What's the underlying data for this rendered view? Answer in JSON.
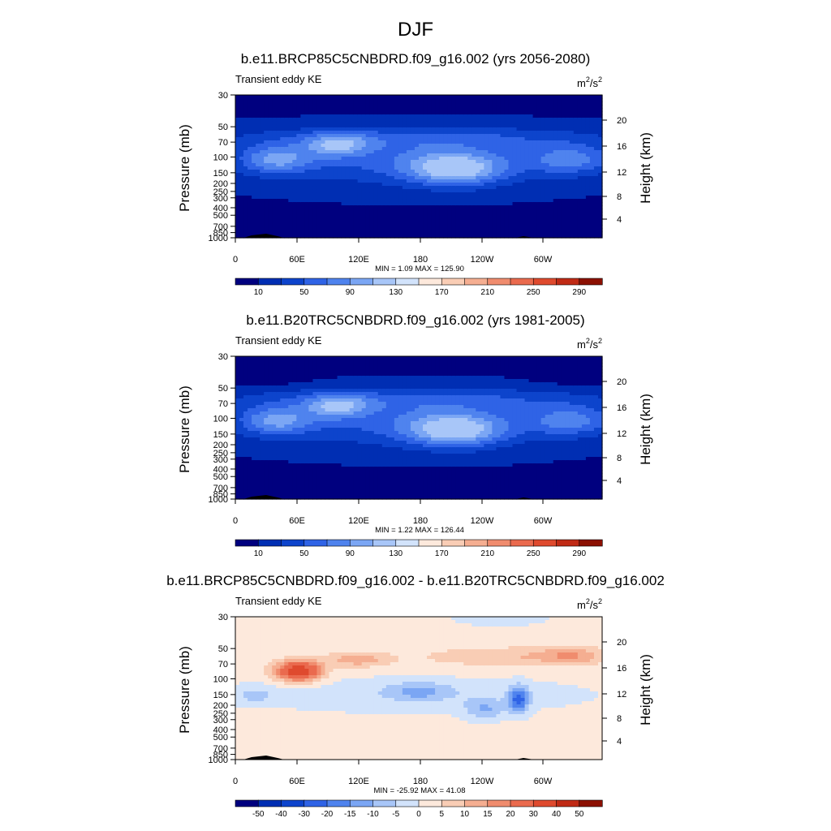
{
  "page_title": "DJF",
  "colormap": {
    "cool": [
      "#00007f",
      "#002eb3",
      "#0d44cc",
      "#2f63e6",
      "#4f83ee",
      "#7ba6f4",
      "#a8c6f8",
      "#d2e3fb"
    ],
    "warm": [
      "#fde9dc",
      "#f9cdb5",
      "#f5ae91",
      "#f08c6e",
      "#ea6a4e",
      "#df4a2e",
      "#c02a15",
      "#8c1002"
    ]
  },
  "chart_data": [
    {
      "type": "heatmap",
      "id": "p1",
      "title": "b.e11.BRCP85C5CNBDRD.f09_g16.002 (yrs 2056-2080)",
      "left_label": "Transient eddy KE",
      "units_base": "m",
      "units_sup": "2",
      "units_mid": "/s",
      "units_sup2": "2",
      "ylabel": "Pressure (mb)",
      "ylabel_right": "Height (km)",
      "pressure_ticks": [
        "30",
        "50",
        "70",
        "100",
        "150",
        "200",
        "250",
        "300",
        "400",
        "500",
        "700",
        "850",
        "1000"
      ],
      "height_ticks": [
        "20",
        "16",
        "12",
        "8",
        "4"
      ],
      "lon_ticks": [
        "0",
        "60E",
        "120E",
        "180",
        "120W",
        "60W"
      ],
      "minmax": "MIN =   1.09  MAX = 125.90",
      "min": 1.09,
      "max": 125.9,
      "colorbar_labels": [
        "10",
        "50",
        "90",
        "130",
        "170",
        "210",
        "250",
        "290"
      ],
      "levels": [
        10,
        30,
        50,
        70,
        90,
        110,
        130,
        150,
        170,
        190,
        210,
        230,
        250,
        270,
        290
      ]
    },
    {
      "type": "heatmap",
      "id": "p2",
      "title": "b.e11.B20TRC5CNBDRD.f09_g16.002 (yrs 1981-2005)",
      "left_label": "Transient eddy KE",
      "units_base": "m",
      "units_sup": "2",
      "units_mid": "/s",
      "units_sup2": "2",
      "ylabel": "Pressure (mb)",
      "ylabel_right": "Height (km)",
      "pressure_ticks": [
        "30",
        "50",
        "70",
        "100",
        "150",
        "200",
        "250",
        "300",
        "400",
        "500",
        "700",
        "850",
        "1000"
      ],
      "height_ticks": [
        "20",
        "16",
        "12",
        "8",
        "4"
      ],
      "lon_ticks": [
        "0",
        "60E",
        "120E",
        "180",
        "120W",
        "60W"
      ],
      "minmax": "MIN =   1.22  MAX = 126.44",
      "min": 1.22,
      "max": 126.44,
      "colorbar_labels": [
        "10",
        "50",
        "90",
        "130",
        "170",
        "210",
        "250",
        "290"
      ],
      "levels": [
        10,
        30,
        50,
        70,
        90,
        110,
        130,
        150,
        170,
        190,
        210,
        230,
        250,
        270,
        290
      ]
    },
    {
      "type": "heatmap",
      "id": "p3",
      "title": "b.e11.BRCP85C5CNBDRD.f09_g16.002 - b.e11.B20TRC5CNBDRD.f09_g16.002",
      "left_label": "Transient eddy KE",
      "units_base": "m",
      "units_sup": "2",
      "units_mid": "/s",
      "units_sup2": "2",
      "ylabel": "Pressure (mb)",
      "ylabel_right": "Height (km)",
      "pressure_ticks": [
        "30",
        "50",
        "70",
        "100",
        "150",
        "200",
        "250",
        "300",
        "400",
        "500",
        "700",
        "850",
        "1000"
      ],
      "height_ticks": [
        "20",
        "16",
        "12",
        "8",
        "4"
      ],
      "lon_ticks": [
        "0",
        "60E",
        "120E",
        "180",
        "120W",
        "60W"
      ],
      "minmax": "MIN = -25.92  MAX =  41.08",
      "min": -25.92,
      "max": 41.08,
      "colorbar_labels": [
        "-50",
        "-40",
        "-30",
        "-20",
        "-15",
        "-10",
        "-5",
        "0",
        "5",
        "10",
        "15",
        "20",
        "30",
        "40",
        "50"
      ],
      "levels": [
        -50,
        -40,
        -30,
        -20,
        -15,
        -10,
        -5,
        0,
        5,
        10,
        15,
        20,
        30,
        40,
        50
      ]
    }
  ]
}
